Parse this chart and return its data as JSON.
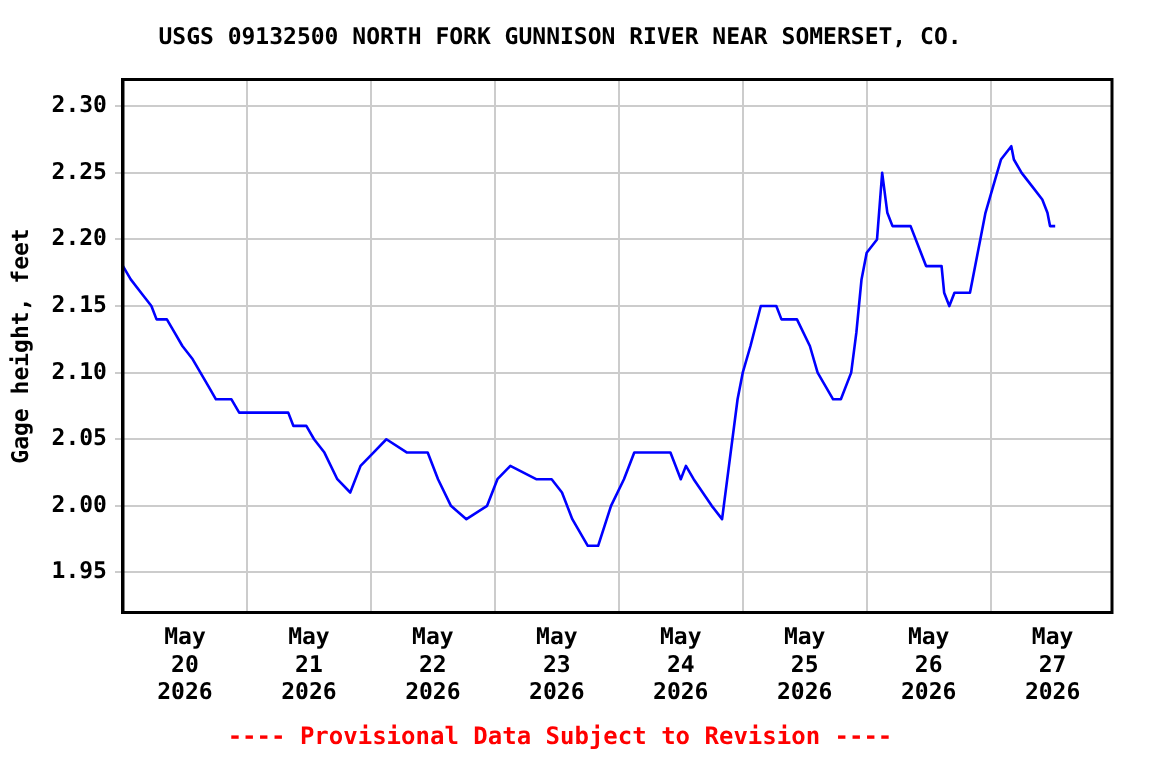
{
  "chart_data": {
    "type": "line",
    "title": "USGS 09132500 NORTH FORK GUNNISON RIVER NEAR SOMERSET, CO.",
    "ylabel": "Gage height, feet",
    "annotations": [
      "---- Provisional Data Subject to Revision ----"
    ],
    "x": [
      "2026-05-20T00:00",
      "2026-05-20T01:30",
      "2026-05-20T03:30",
      "2026-05-20T05:30",
      "2026-05-20T06:30",
      "2026-05-20T08:30",
      "2026-05-20T10:00",
      "2026-05-20T11:30",
      "2026-05-20T13:30",
      "2026-05-20T15:00",
      "2026-05-20T16:30",
      "2026-05-20T18:00",
      "2026-05-20T21:00",
      "2026-05-20T22:30",
      "2026-05-21T04:00",
      "2026-05-21T08:00",
      "2026-05-21T09:00",
      "2026-05-21T11:30",
      "2026-05-21T13:00",
      "2026-05-21T15:00",
      "2026-05-21T17:30",
      "2026-05-21T20:00",
      "2026-05-21T22:00",
      "2026-05-22T00:30",
      "2026-05-22T03:00",
      "2026-05-22T07:00",
      "2026-05-22T11:00",
      "2026-05-22T13:00",
      "2026-05-22T15:30",
      "2026-05-22T18:30",
      "2026-05-22T22:30",
      "2026-05-23T00:30",
      "2026-05-23T03:00",
      "2026-05-23T08:00",
      "2026-05-23T11:00",
      "2026-05-23T13:00",
      "2026-05-23T15:00",
      "2026-05-23T18:00",
      "2026-05-23T20:00",
      "2026-05-23T22:30",
      "2026-05-24T01:00",
      "2026-05-24T03:00",
      "2026-05-24T10:00",
      "2026-05-24T12:00",
      "2026-05-24T13:00",
      "2026-05-24T14:30",
      "2026-05-24T18:00",
      "2026-05-24T20:00",
      "2026-05-24T21:00",
      "2026-05-24T23:00",
      "2026-05-25T00:00",
      "2026-05-25T01:30",
      "2026-05-25T03:30",
      "2026-05-25T06:30",
      "2026-05-25T07:30",
      "2026-05-25T10:30",
      "2026-05-25T13:00",
      "2026-05-25T14:30",
      "2026-05-25T17:30",
      "2026-05-25T19:00",
      "2026-05-25T21:00",
      "2026-05-25T22:00",
      "2026-05-25T23:00",
      "2026-05-26T00:00",
      "2026-05-26T02:00",
      "2026-05-26T03:00",
      "2026-05-26T04:00",
      "2026-05-26T05:00",
      "2026-05-26T08:30",
      "2026-05-26T10:30",
      "2026-05-26T11:30",
      "2026-05-26T14:30",
      "2026-05-26T15:00",
      "2026-05-26T16:00",
      "2026-05-26T17:00",
      "2026-05-26T20:00",
      "2026-05-26T20:30",
      "2026-05-26T22:00",
      "2026-05-26T23:00",
      "2026-05-27T00:30",
      "2026-05-27T02:00",
      "2026-05-27T04:00",
      "2026-05-27T04:30",
      "2026-05-27T06:00",
      "2026-05-27T08:00",
      "2026-05-27T10:00",
      "2026-05-27T11:00",
      "2026-05-27T11:30",
      "2026-05-27T12:30"
    ],
    "series": [
      {
        "color": "#0000ff",
        "values": [
          2.18,
          2.17,
          2.16,
          2.15,
          2.14,
          2.14,
          2.13,
          2.12,
          2.11,
          2.1,
          2.09,
          2.08,
          2.08,
          2.07,
          2.07,
          2.07,
          2.06,
          2.06,
          2.05,
          2.04,
          2.02,
          2.01,
          2.03,
          2.04,
          2.05,
          2.04,
          2.04,
          2.02,
          2.0,
          1.99,
          2.0,
          2.02,
          2.03,
          2.02,
          2.02,
          2.01,
          1.99,
          1.97,
          1.97,
          2.0,
          2.02,
          2.04,
          2.04,
          2.02,
          2.03,
          2.02,
          2.0,
          1.99,
          2.02,
          2.08,
          2.1,
          2.12,
          2.15,
          2.15,
          2.14,
          2.14,
          2.12,
          2.1,
          2.08,
          2.08,
          2.1,
          2.13,
          2.17,
          2.19,
          2.2,
          2.25,
          2.22,
          2.21,
          2.21,
          2.19,
          2.18,
          2.18,
          2.16,
          2.15,
          2.16,
          2.16,
          2.17,
          2.2,
          2.22,
          2.24,
          2.26,
          2.27,
          2.26,
          2.25,
          2.24,
          2.23,
          2.22,
          2.21,
          2.21
        ]
      }
    ],
    "xlim": [
      "2026-05-20T00:00",
      "2026-05-27T23:30"
    ],
    "xticks": [
      {
        "value": "2026-05-20T12:00",
        "label": "May\n20\n2026"
      },
      {
        "value": "2026-05-21T00:00",
        "label": null
      },
      {
        "value": "2026-05-21T12:00",
        "label": "May\n21\n2026"
      },
      {
        "value": "2026-05-22T00:00",
        "label": null
      },
      {
        "value": "2026-05-22T12:00",
        "label": "May\n22\n2026"
      },
      {
        "value": "2026-05-23T00:00",
        "label": null
      },
      {
        "value": "2026-05-23T12:00",
        "label": "May\n23\n2026"
      },
      {
        "value": "2026-05-24T00:00",
        "label": null
      },
      {
        "value": "2026-05-24T12:00",
        "label": "May\n24\n2026"
      },
      {
        "value": "2026-05-25T00:00",
        "label": null
      },
      {
        "value": "2026-05-25T12:00",
        "label": "May\n25\n2026"
      },
      {
        "value": "2026-05-26T00:00",
        "label": null
      },
      {
        "value": "2026-05-26T12:00",
        "label": "May\n26\n2026"
      },
      {
        "value": "2026-05-27T00:00",
        "label": null
      },
      {
        "value": "2026-05-27T12:00",
        "label": "May\n27\n2026"
      }
    ],
    "ylim": [
      1.92,
      2.32
    ],
    "yticks": [
      {
        "value": 1.95,
        "label": "1.95"
      },
      {
        "value": 2.0,
        "label": "2.00"
      },
      {
        "value": 2.05,
        "label": "2.05"
      },
      {
        "value": 2.1,
        "label": "2.10"
      },
      {
        "value": 2.15,
        "label": "2.15"
      },
      {
        "value": 2.2,
        "label": "2.20"
      },
      {
        "value": 2.25,
        "label": "2.25"
      },
      {
        "value": 2.3,
        "label": "2.30"
      }
    ],
    "grid": true,
    "legend": false,
    "marker": "none",
    "line_style": "solid"
  }
}
